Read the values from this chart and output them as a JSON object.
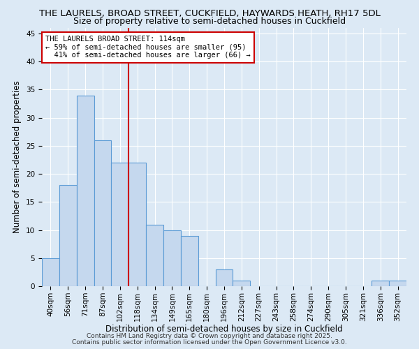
{
  "title_line1": "THE LAURELS, BROAD STREET, CUCKFIELD, HAYWARDS HEATH, RH17 5DL",
  "title_line2": "Size of property relative to semi-detached houses in Cuckfield",
  "xlabel": "Distribution of semi-detached houses by size in Cuckfield",
  "ylabel": "Number of semi-detached properties",
  "categories": [
    "40sqm",
    "56sqm",
    "71sqm",
    "87sqm",
    "102sqm",
    "118sqm",
    "134sqm",
    "149sqm",
    "165sqm",
    "180sqm",
    "196sqm",
    "212sqm",
    "227sqm",
    "243sqm",
    "258sqm",
    "274sqm",
    "290sqm",
    "305sqm",
    "321sqm",
    "336sqm",
    "352sqm"
  ],
  "values": [
    5,
    18,
    34,
    26,
    22,
    22,
    11,
    10,
    9,
    0,
    3,
    1,
    0,
    0,
    0,
    0,
    0,
    0,
    0,
    1,
    1
  ],
  "bar_color": "#c5d8ee",
  "bar_edge_color": "#5b9bd5",
  "property_line_x": 4.5,
  "annotation_line1": "THE LAURELS BROAD STREET: 114sqm",
  "annotation_line2": "← 59% of semi-detached houses are smaller (95)",
  "annotation_line3": "  41% of semi-detached houses are larger (66) →",
  "annotation_box_color": "#ffffff",
  "annotation_box_edge": "#cc0000",
  "vline_color": "#cc0000",
  "ylim": [
    0,
    46
  ],
  "yticks": [
    0,
    5,
    10,
    15,
    20,
    25,
    30,
    35,
    40,
    45
  ],
  "background_color": "#dce9f5",
  "footer_line1": "Contains HM Land Registry data © Crown copyright and database right 2025.",
  "footer_line2": "Contains public sector information licensed under the Open Government Licence v3.0.",
  "title_fontsize": 9.5,
  "subtitle_fontsize": 9,
  "axis_label_fontsize": 8.5,
  "tick_fontsize": 7.5,
  "annotation_fontsize": 7.5,
  "footer_fontsize": 6.5
}
